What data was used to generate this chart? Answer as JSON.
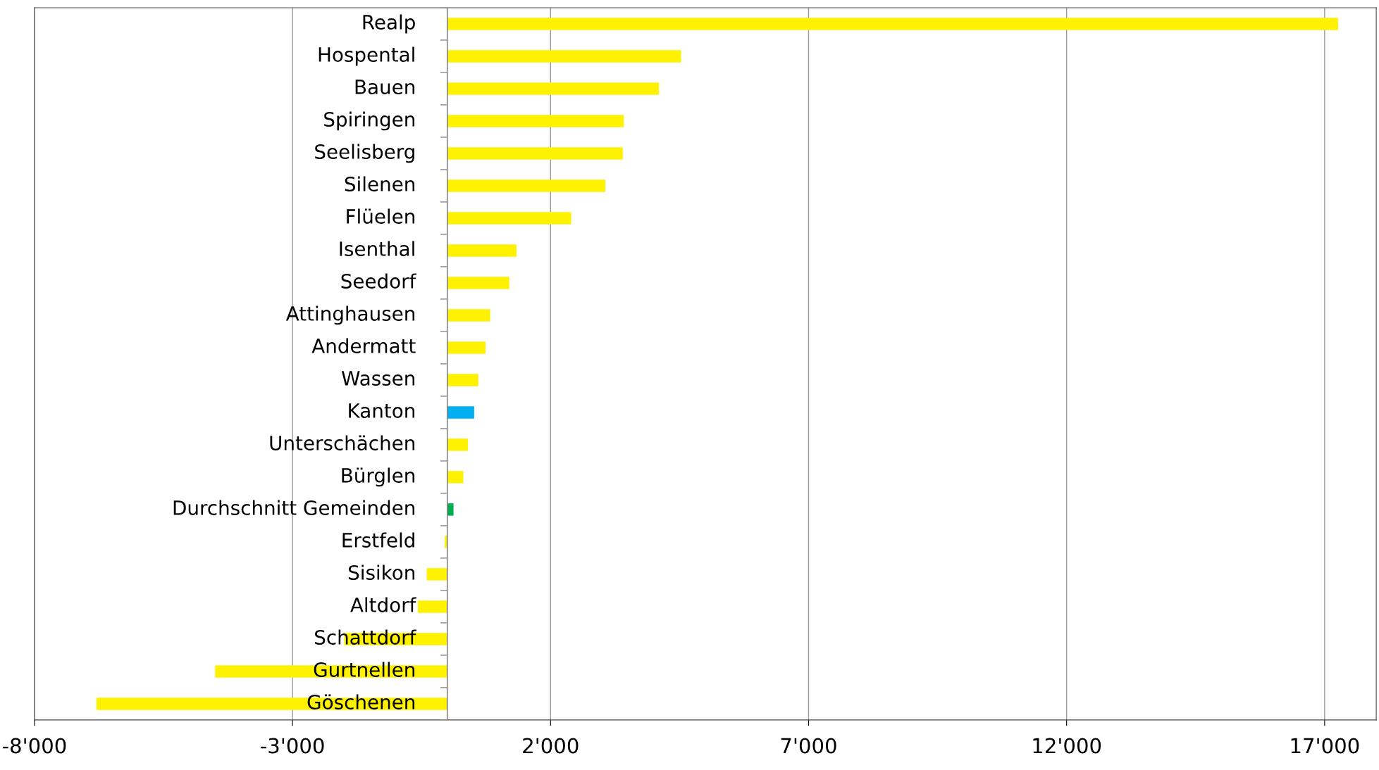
{
  "chart_data": {
    "type": "bar",
    "orientation": "horizontal",
    "categories": [
      "Realp",
      "Hospental",
      "Bauen",
      "Spiringen",
      "Seelisberg",
      "Silenen",
      "Flüelen",
      "Isenthal",
      "Seedorf",
      "Attinghausen",
      "Andermatt",
      "Wassen",
      "Kanton",
      "Unterschächen",
      "Bürglen",
      "Durchschnitt Gemeinden",
      "Erstfeld",
      "Sisikon",
      "Altdorf",
      "Schattdorf",
      "Gurtnellen",
      "Göschenen"
    ],
    "values": [
      17260,
      4530,
      4100,
      3420,
      3400,
      3060,
      2400,
      1340,
      1200,
      830,
      740,
      600,
      520,
      400,
      310,
      120,
      -50,
      -400,
      -570,
      -2000,
      -4500,
      -6800
    ],
    "colors": [
      "#fff200",
      "#fff200",
      "#fff200",
      "#fff200",
      "#fff200",
      "#fff200",
      "#fff200",
      "#fff200",
      "#fff200",
      "#fff200",
      "#fff200",
      "#fff200",
      "#00b0f0",
      "#fff200",
      "#fff200",
      "#00b050",
      "#fff200",
      "#fff200",
      "#fff200",
      "#fff200",
      "#fff200",
      "#fff200"
    ],
    "xlim": [
      -8000,
      18000
    ],
    "xticks": [
      {
        "value": -8000,
        "label": "-8'000"
      },
      {
        "value": -3000,
        "label": "-3'000"
      },
      {
        "value": 2000,
        "label": "2'000"
      },
      {
        "value": 7000,
        "label": "7'000"
      },
      {
        "value": 12000,
        "label": "12'000"
      },
      {
        "value": 17000,
        "label": "17'000"
      }
    ],
    "grid": "x",
    "legend": false
  }
}
